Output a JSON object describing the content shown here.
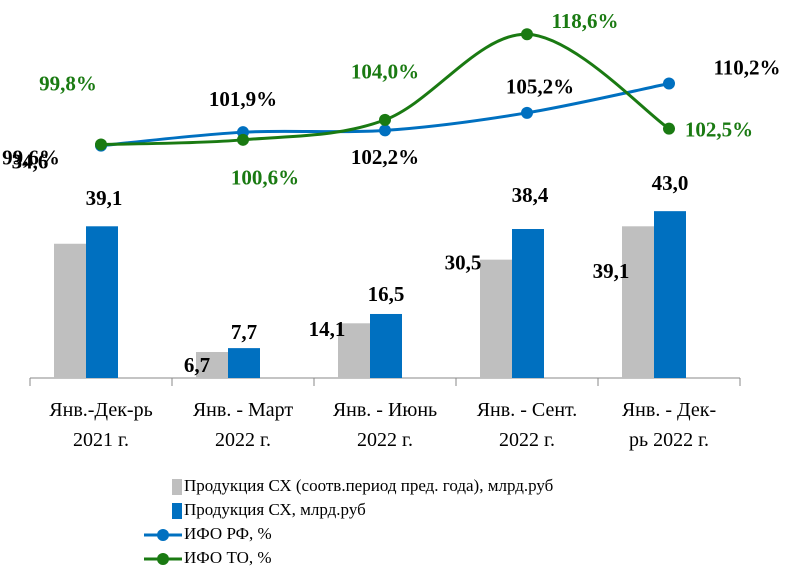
{
  "chart_data": {
    "type": "bar-line",
    "categories": [
      "Янв.-Дек-рь\n2021 г.",
      "Янв. - Март\n2022 г.",
      "Янв. - Июнь\n2022 г.",
      "Янв. - Сент.\n2022 г.",
      "Янв. - Дек-\nрь 2022 г."
    ],
    "ylim": [
      0,
      50
    ],
    "y2lim": [
      60,
      120
    ],
    "series": [
      {
        "name": "Продукция СХ (соотв.период пред. года), млрд.руб",
        "kind": "bar",
        "color": "#bfbfbf",
        "values": [
          34.6,
          6.7,
          14.1,
          30.5,
          39.1
        ],
        "value_labels": [
          "34,6",
          "6,7",
          "14,1",
          "30,5",
          "39,1"
        ]
      },
      {
        "name": "Продукция СХ, млрд.руб",
        "kind": "bar",
        "color": "#0070c0",
        "values": [
          39.1,
          7.7,
          16.5,
          38.4,
          43.0
        ],
        "value_labels": [
          "39,1",
          "7,7",
          "16,5",
          "38,4",
          "43,0"
        ]
      },
      {
        "name": "ИФО РФ, %",
        "kind": "line",
        "axis": "y2",
        "color": "#0070c0",
        "values": [
          99.6,
          101.9,
          102.2,
          105.2,
          110.2
        ],
        "value_labels": [
          "99,6%",
          "101,9%",
          "102,2%",
          "105,2%",
          "110,2%"
        ]
      },
      {
        "name": "ИФО ТО, %",
        "kind": "line",
        "axis": "y2",
        "color": "#1a7a12",
        "values": [
          99.8,
          100.6,
          104.0,
          118.6,
          102.5
        ],
        "value_labels": [
          "99,8%",
          "100,6%",
          "104,0%",
          "118,6%",
          "102,5%"
        ]
      }
    ]
  }
}
